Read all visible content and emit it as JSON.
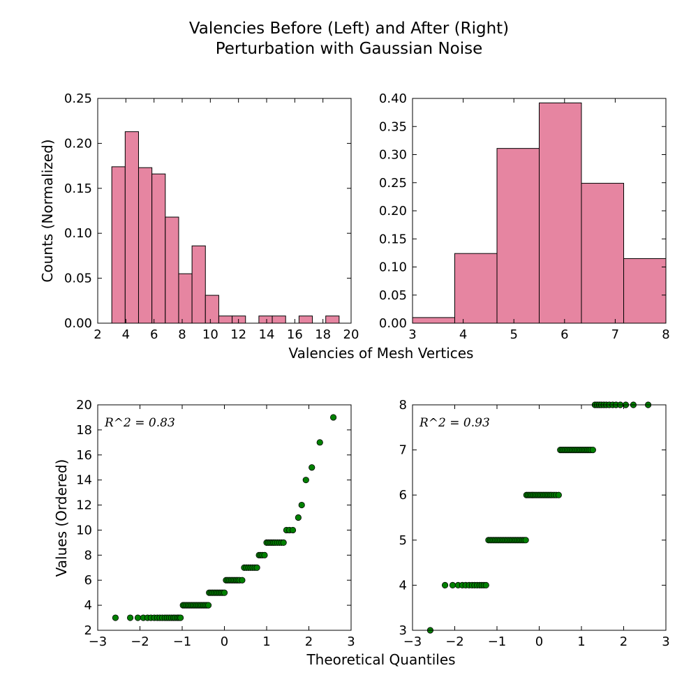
{
  "title_line1": "Valencies Before (Left) and After (Right)",
  "title_line2": "Perturbation with Gaussian Noise",
  "shared_xlabel_top": "Valencies of Mesh Vertices",
  "shared_xlabel_bottom": "Theoretical Quantiles",
  "colors": {
    "bar_fill": "#e685a1",
    "bar_edge": "#000000",
    "point_fill": "#008000",
    "point_edge": "#000000"
  },
  "chart_data": [
    {
      "type": "bar",
      "ylabel": "Counts (Normalized)",
      "xlim": [
        2,
        20
      ],
      "ylim": [
        0,
        0.25
      ],
      "xticks": [
        "2",
        "4",
        "6",
        "8",
        "10",
        "12",
        "14",
        "16",
        "18",
        "20"
      ],
      "yticks": [
        "0.00",
        "0.05",
        "0.10",
        "0.15",
        "0.20",
        "0.25"
      ],
      "bins": [
        {
          "x0": 3.0,
          "x1": 3.95,
          "value": 0.174
        },
        {
          "x0": 3.95,
          "x1": 4.9,
          "value": 0.213
        },
        {
          "x0": 4.9,
          "x1": 5.85,
          "value": 0.173
        },
        {
          "x0": 5.85,
          "x1": 6.8,
          "value": 0.166
        },
        {
          "x0": 6.8,
          "x1": 7.75,
          "value": 0.118
        },
        {
          "x0": 7.75,
          "x1": 8.7,
          "value": 0.055
        },
        {
          "x0": 8.7,
          "x1": 9.65,
          "value": 0.086
        },
        {
          "x0": 9.65,
          "x1": 10.6,
          "value": 0.031
        },
        {
          "x0": 10.6,
          "x1": 11.55,
          "value": 0.008
        },
        {
          "x0": 11.55,
          "x1": 12.5,
          "value": 0.008
        },
        {
          "x0": 13.45,
          "x1": 14.4,
          "value": 0.008
        },
        {
          "x0": 14.4,
          "x1": 15.35,
          "value": 0.008
        },
        {
          "x0": 16.3,
          "x1": 17.25,
          "value": 0.008
        },
        {
          "x0": 18.2,
          "x1": 19.15,
          "value": 0.008
        }
      ]
    },
    {
      "type": "bar",
      "ylabel": "",
      "xlim": [
        3,
        8
      ],
      "ylim": [
        0,
        0.4
      ],
      "xticks": [
        "3",
        "4",
        "5",
        "6",
        "7",
        "8"
      ],
      "yticks": [
        "0.00",
        "0.05",
        "0.10",
        "0.15",
        "0.20",
        "0.25",
        "0.30",
        "0.35",
        "0.40"
      ],
      "bins": [
        {
          "x0": 3.0,
          "x1": 3.833,
          "value": 0.01
        },
        {
          "x0": 3.833,
          "x1": 4.667,
          "value": 0.124
        },
        {
          "x0": 4.667,
          "x1": 5.5,
          "value": 0.311
        },
        {
          "x0": 5.5,
          "x1": 6.333,
          "value": 0.392
        },
        {
          "x0": 6.333,
          "x1": 7.167,
          "value": 0.249
        },
        {
          "x0": 7.167,
          "x1": 8.0,
          "value": 0.115
        }
      ]
    },
    {
      "type": "scatter",
      "ylabel": "Values (Ordered)",
      "annotation": "R^2 = 0.83",
      "xlim": [
        -3,
        3
      ],
      "ylim": [
        2,
        20
      ],
      "xticks": [
        "−3",
        "−2",
        "−1",
        "0",
        "1",
        "2",
        "3"
      ],
      "yticks": [
        "2",
        "4",
        "6",
        "8",
        "10",
        "12",
        "14",
        "16",
        "18",
        "20"
      ],
      "groups": [
        {
          "y": 3,
          "x": [
            -2.58,
            -2.23,
            -2.05,
            -1.92,
            -1.82,
            -1.74,
            -1.66,
            -1.59,
            -1.53,
            -1.47,
            -1.41,
            -1.36,
            -1.31,
            -1.26,
            -1.21,
            -1.17,
            -1.12,
            -1.08,
            -1.04
          ]
        },
        {
          "y": 4,
          "x": [
            -0.98,
            -0.94,
            -0.9,
            -0.86,
            -0.82,
            -0.78,
            -0.74,
            -0.7,
            -0.66,
            -0.62,
            -0.58,
            -0.54,
            -0.5,
            -0.46,
            -0.42,
            -0.38
          ]
        },
        {
          "y": 5,
          "x": [
            -0.36,
            -0.32,
            -0.28,
            -0.24,
            -0.2,
            -0.16,
            -0.12,
            -0.08,
            -0.04,
            0.0
          ]
        },
        {
          "y": 6,
          "x": [
            0.04,
            0.08,
            0.12,
            0.16,
            0.2,
            0.24,
            0.28,
            0.32,
            0.36,
            0.42
          ]
        },
        {
          "y": 7,
          "x": [
            0.47,
            0.52,
            0.57,
            0.62,
            0.67,
            0.72,
            0.77
          ]
        },
        {
          "y": 8,
          "x": [
            0.82,
            0.86,
            0.9,
            0.95
          ]
        },
        {
          "y": 9,
          "x": [
            1.0,
            1.04,
            1.08,
            1.12,
            1.16,
            1.2,
            1.25,
            1.3,
            1.35,
            1.4
          ]
        },
        {
          "y": 10,
          "x": [
            1.47,
            1.54,
            1.62
          ]
        },
        {
          "y": 11,
          "x": [
            1.75
          ]
        },
        {
          "y": 12,
          "x": [
            1.83
          ]
        },
        {
          "y": 14,
          "x": [
            1.93
          ]
        },
        {
          "y": 15,
          "x": [
            2.07
          ]
        },
        {
          "y": 17,
          "x": [
            2.26
          ]
        },
        {
          "y": 19,
          "x": [
            2.58
          ]
        }
      ]
    },
    {
      "type": "scatter",
      "ylabel": "",
      "annotation": "R^2 = 0.93",
      "xlim": [
        -3,
        3
      ],
      "ylim": [
        3,
        8
      ],
      "xticks": [
        "−3",
        "−2",
        "−1",
        "0",
        "1",
        "2",
        "3"
      ],
      "yticks": [
        "3",
        "4",
        "5",
        "6",
        "7",
        "8"
      ],
      "groups": [
        {
          "y": 3,
          "x": [
            -2.58
          ]
        },
        {
          "y": 4,
          "x": [
            -2.23,
            -2.05,
            -1.92,
            -1.82,
            -1.74,
            -1.66,
            -1.59,
            -1.53,
            -1.47,
            -1.41,
            -1.36,
            -1.31,
            -1.26
          ]
        },
        {
          "y": 5,
          "x": [
            -1.2,
            -1.16,
            -1.12,
            -1.08,
            -1.04,
            -1.0,
            -0.96,
            -0.92,
            -0.88,
            -0.84,
            -0.8,
            -0.76,
            -0.72,
            -0.68,
            -0.64,
            -0.6,
            -0.56,
            -0.52,
            -0.48,
            -0.44,
            -0.4,
            -0.36,
            -0.32
          ]
        },
        {
          "y": 6,
          "x": [
            -0.3,
            -0.26,
            -0.22,
            -0.18,
            -0.14,
            -0.1,
            -0.06,
            -0.02,
            0.02,
            0.06,
            0.1,
            0.14,
            0.18,
            0.22,
            0.26,
            0.3,
            0.35,
            0.4,
            0.46
          ]
        },
        {
          "y": 7,
          "x": [
            0.5,
            0.54,
            0.58,
            0.62,
            0.66,
            0.7,
            0.74,
            0.78,
            0.82,
            0.86,
            0.9,
            0.94,
            0.98,
            1.02,
            1.06,
            1.1,
            1.14,
            1.18,
            1.22,
            1.27
          ]
        },
        {
          "y": 8,
          "x": [
            1.32,
            1.37,
            1.42,
            1.47,
            1.53,
            1.59,
            1.66,
            1.74,
            1.82,
            1.92,
            2.05,
            2.23,
            2.58
          ]
        }
      ]
    }
  ]
}
